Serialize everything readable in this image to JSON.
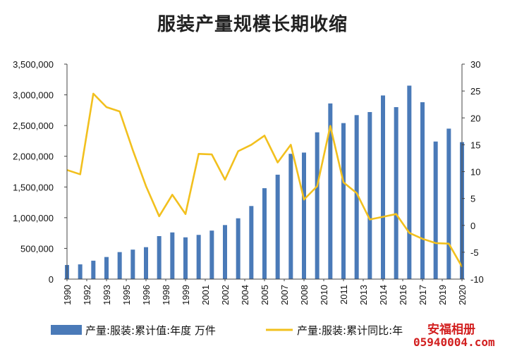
{
  "chart_data": {
    "type": "bar+line",
    "title": "服装产量规模长期收缩",
    "categories": [
      "1990",
      "1991",
      "1992",
      "1993",
      "1994",
      "1995",
      "1996",
      "1997",
      "1998",
      "1999",
      "2000",
      "2001",
      "2002",
      "2003",
      "2004",
      "2005",
      "2006",
      "2007",
      "2008",
      "2009",
      "2010",
      "2011",
      "2012",
      "2013",
      "2014",
      "2015",
      "2016",
      "2017",
      "2018",
      "2019",
      "2020"
    ],
    "x_tick_labels": [
      "1990",
      "1992",
      "1993",
      "1995",
      "1996",
      "1998",
      "1999",
      "2001",
      "2002",
      "2004",
      "2005",
      "2007",
      "2008",
      "2010",
      "2011",
      "2013",
      "2014",
      "2016",
      "2017",
      "2019",
      "2020"
    ],
    "series": [
      {
        "name": "产量:服装:累计值:年度 万件",
        "type": "bar",
        "axis": "left",
        "color": "#4a7ab8",
        "values": [
          230000,
          240000,
          300000,
          360000,
          440000,
          480000,
          520000,
          700000,
          760000,
          680000,
          720000,
          790000,
          880000,
          990000,
          1190000,
          1480000,
          1700000,
          2040000,
          2060000,
          2390000,
          2860000,
          2540000,
          2670000,
          2720000,
          2990000,
          2800000,
          3150000,
          2880000,
          2240000,
          2450000,
          2230000
        ]
      },
      {
        "name": "产量:服装:累计同比:年",
        "type": "line",
        "axis": "right",
        "color": "#f2c01e",
        "values": [
          10.3,
          9.5,
          24.5,
          22.0,
          21.2,
          14.0,
          7.3,
          1.7,
          5.7,
          2.1,
          13.3,
          13.2,
          8.5,
          13.8,
          15.0,
          16.7,
          11.7,
          15.0,
          4.8,
          7.3,
          18.5,
          8.0,
          6.0,
          1.1,
          1.6,
          2.1,
          -1.4,
          -2.5,
          -3.3,
          -3.4,
          -7.7
        ]
      }
    ],
    "y_left": {
      "min": 0,
      "max": 3500000,
      "ticks": [
        "0",
        "500,000",
        "1,000,000",
        "1,500,000",
        "2,000,000",
        "2,500,000",
        "3,000,000",
        "3,500,000"
      ]
    },
    "y_right": {
      "min": -10,
      "max": 30,
      "ticks": [
        "-10",
        "-5",
        "0",
        "5",
        "10",
        "15",
        "20",
        "25",
        "30"
      ]
    },
    "grid": false,
    "legend_position": "bottom"
  },
  "watermark": {
    "line1": "安福相册",
    "line2": "05940004.com"
  }
}
